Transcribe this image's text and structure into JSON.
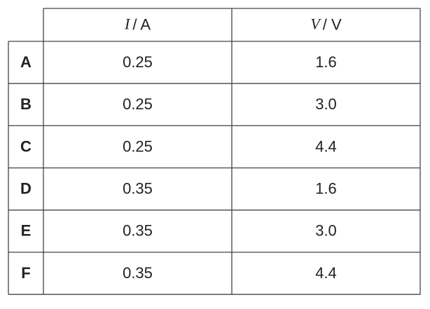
{
  "table": {
    "header": [
      {
        "symbol": "I",
        "unit": "/ A"
      },
      {
        "symbol": "V",
        "unit": "/ V"
      }
    ],
    "rows": [
      [
        "A",
        "0.25",
        "1.6"
      ],
      [
        "B",
        "0.25",
        "3.0"
      ],
      [
        "C",
        "0.25",
        "4.4"
      ],
      [
        "D",
        "0.35",
        "1.6"
      ],
      [
        "E",
        "0.35",
        "3.0"
      ],
      [
        "F",
        "0.35",
        "4.4"
      ]
    ]
  }
}
